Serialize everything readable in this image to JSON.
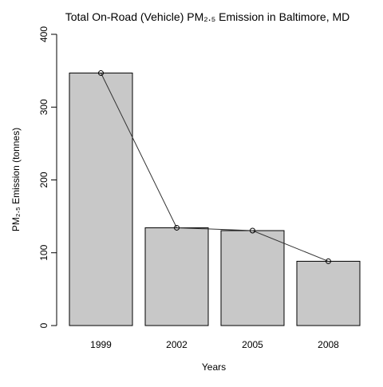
{
  "chart_data": {
    "type": "bar",
    "title": "Total On-Road (Vehicle) PM₂.₅ Emission in Baltimore, MD",
    "xlabel": "Years",
    "ylabel": "PM₂.₅ Emission (tonnes)",
    "categories": [
      "1999",
      "2002",
      "2005",
      "2008"
    ],
    "values": [
      346.8,
      134.3,
      130.4,
      88.3
    ],
    "ylim": [
      0,
      400
    ],
    "yticks": [
      "0",
      "100",
      "200",
      "300",
      "400"
    ],
    "overlay": "line with open circle markers through bar tops",
    "grid": false,
    "bar_color": "#c8c8c8",
    "bar_border_color": "#000000",
    "line_color": "#333333"
  }
}
